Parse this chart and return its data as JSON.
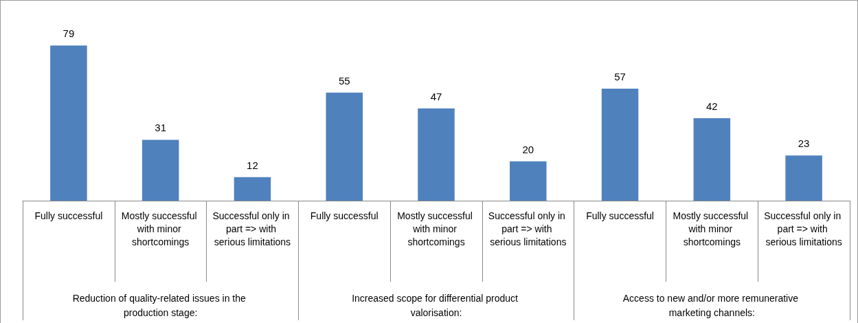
{
  "chart_data": {
    "type": "bar",
    "categories": [
      "Fully successful",
      "Mostly successful with minor shortcomings",
      "Successful only in part => with serious limitations",
      "Fully successful",
      "Mostly successful with minor shortcomings",
      "Successful only in part => with serious limitations",
      "Fully successful",
      "Mostly successful with minor shortcomings",
      "Successful only in part => with serious limitations"
    ],
    "values": [
      79,
      31,
      12,
      55,
      47,
      20,
      57,
      42,
      23
    ],
    "color": "#4f81bd",
    "data_labels": true,
    "annotations": [
      "Reduction of quality-related issues in the production stage:",
      "Increased scope for differential product valorisation:",
      "Access to new and/or more remunerative marketing channels:"
    ]
  }
}
